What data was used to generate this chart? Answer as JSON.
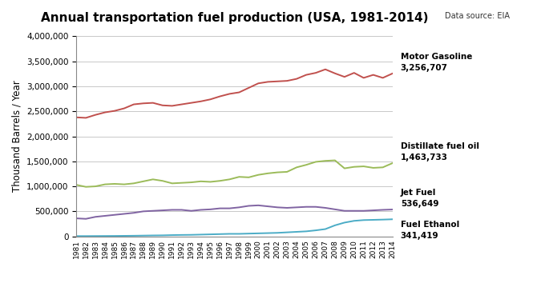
{
  "title": "Annual transportation fuel production (USA, 1981-2014)",
  "data_source": "Data source: EIA",
  "ylabel": "Thousand Barrels / Year",
  "years": [
    1981,
    1982,
    1983,
    1984,
    1985,
    1986,
    1987,
    1988,
    1989,
    1990,
    1991,
    1992,
    1993,
    1994,
    1995,
    1996,
    1997,
    1998,
    1999,
    2000,
    2001,
    2002,
    2003,
    2004,
    2005,
    2006,
    2007,
    2008,
    2009,
    2010,
    2011,
    2012,
    2013,
    2014
  ],
  "motor_gasoline": [
    2380000,
    2370000,
    2430000,
    2480000,
    2510000,
    2560000,
    2640000,
    2660000,
    2670000,
    2620000,
    2610000,
    2640000,
    2670000,
    2700000,
    2740000,
    2800000,
    2850000,
    2880000,
    2970000,
    3060000,
    3090000,
    3100000,
    3110000,
    3150000,
    3230000,
    3270000,
    3340000,
    3260000,
    3190000,
    3270000,
    3170000,
    3230000,
    3170000,
    3256707
  ],
  "distillate_fuel_oil": [
    1030000,
    990000,
    1000000,
    1040000,
    1050000,
    1040000,
    1060000,
    1100000,
    1140000,
    1110000,
    1060000,
    1070000,
    1080000,
    1100000,
    1090000,
    1110000,
    1140000,
    1190000,
    1180000,
    1230000,
    1260000,
    1280000,
    1290000,
    1380000,
    1430000,
    1490000,
    1510000,
    1520000,
    1360000,
    1390000,
    1400000,
    1370000,
    1380000,
    1463733
  ],
  "jet_fuel": [
    360000,
    350000,
    390000,
    410000,
    430000,
    450000,
    470000,
    500000,
    510000,
    520000,
    530000,
    530000,
    510000,
    530000,
    540000,
    560000,
    560000,
    580000,
    610000,
    620000,
    600000,
    580000,
    570000,
    580000,
    590000,
    590000,
    570000,
    540000,
    510000,
    510000,
    510000,
    520000,
    530000,
    536649
  ],
  "fuel_ethanol": [
    5000,
    5000,
    6000,
    7000,
    8000,
    10000,
    12000,
    15000,
    18000,
    20000,
    25000,
    28000,
    30000,
    35000,
    40000,
    45000,
    50000,
    50000,
    55000,
    60000,
    65000,
    70000,
    80000,
    90000,
    100000,
    120000,
    145000,
    220000,
    275000,
    310000,
    325000,
    330000,
    335000,
    341419
  ],
  "colors": {
    "motor_gasoline": "#c0504d",
    "distillate_fuel_oil": "#9bbb59",
    "jet_fuel": "#8064a2",
    "fuel_ethanol": "#4bacc6"
  },
  "label_motor_gasoline_line1": "Motor Gasoline",
  "label_motor_gasoline_line2": "3,256,707",
  "label_distillate_line1": "Distillate fuel oil",
  "label_distillate_line2": "1,463,733",
  "label_jet_line1": "Jet Fuel",
  "label_jet_line2": "536,649",
  "label_ethanol_line1": "Fuel Ethanol",
  "label_ethanol_line2": "341,419",
  "ylim": [
    0,
    4000000
  ],
  "yticks": [
    0,
    500000,
    1000000,
    1500000,
    2000000,
    2500000,
    3000000,
    3500000,
    4000000
  ],
  "background_color": "#ffffff",
  "grid_color": "#c8c8c8"
}
